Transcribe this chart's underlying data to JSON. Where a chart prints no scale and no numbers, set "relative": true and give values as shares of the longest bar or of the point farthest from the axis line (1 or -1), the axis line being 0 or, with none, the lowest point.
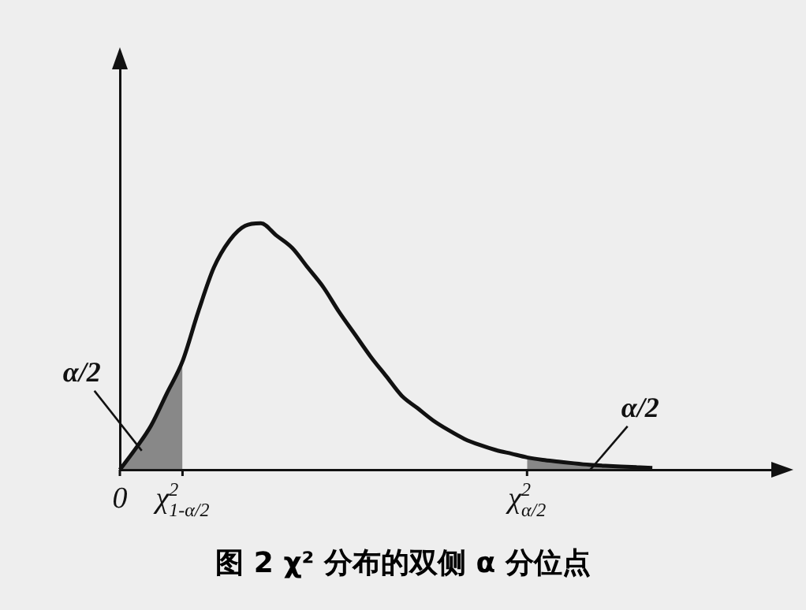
{
  "chart_data": {
    "type": "line",
    "title": "图 2  χ² 分布的双侧 α 分位点",
    "relative": true,
    "grid": false,
    "legend": false,
    "marker": "none",
    "line_style": "solid",
    "categories": [
      "0",
      null,
      null,
      null,
      "χ$^{2}$$_{1-α/2}$",
      null,
      null,
      null,
      null,
      null,
      null,
      null,
      null,
      null,
      null,
      null,
      null,
      null,
      null,
      null,
      null,
      null,
      null,
      null,
      null,
      null,
      "χ$^{2}$$_{α/2}$",
      null,
      null,
      null,
      null,
      null,
      null,
      null,
      null,
      null,
      null,
      null,
      null,
      null,
      null,
      null,
      null
    ],
    "series": [
      {
        "color": "#111111",
        "values": [
          0,
          0.085,
          0.18,
          0.31,
          0.44,
          0.64,
          0.82,
          0.93,
          0.99,
          1,
          0.95,
          0.9,
          0.82,
          0.74,
          0.64,
          0.55,
          0.46,
          0.38,
          0.3,
          0.25,
          0.2,
          0.16,
          0.125,
          0.1,
          0.08,
          0.065,
          0.05,
          0.04,
          0.033,
          0.026,
          0.02,
          0.016,
          0.013,
          0.01,
          0.007,
          null,
          null,
          null,
          null,
          null,
          null,
          null,
          null
        ]
      },
      {
        "type": "area",
        "color": "#222222",
        "values": [
          0,
          0.085,
          0.18,
          0.31,
          0.44,
          null,
          null,
          null,
          null,
          null,
          null,
          null,
          null,
          null,
          null,
          null,
          null,
          null,
          null,
          null,
          null,
          null,
          null,
          null,
          null,
          null,
          null,
          null,
          null,
          null,
          null,
          null,
          null,
          null,
          null,
          null,
          null,
          null,
          null,
          null,
          null,
          null,
          null
        ]
      },
      {
        "type": "area",
        "color": "#222222",
        "values": [
          null,
          null,
          null,
          null,
          null,
          null,
          null,
          null,
          null,
          null,
          null,
          null,
          null,
          null,
          null,
          null,
          null,
          null,
          null,
          null,
          null,
          null,
          null,
          null,
          null,
          null,
          0.05,
          0.04,
          0.033,
          0.026,
          0.02,
          0.016,
          0.013,
          0.01,
          0.007,
          null,
          null,
          null,
          null,
          null,
          null,
          null,
          null
        ]
      }
    ],
    "annotations": [
      "α/2",
      "α/2"
    ]
  }
}
